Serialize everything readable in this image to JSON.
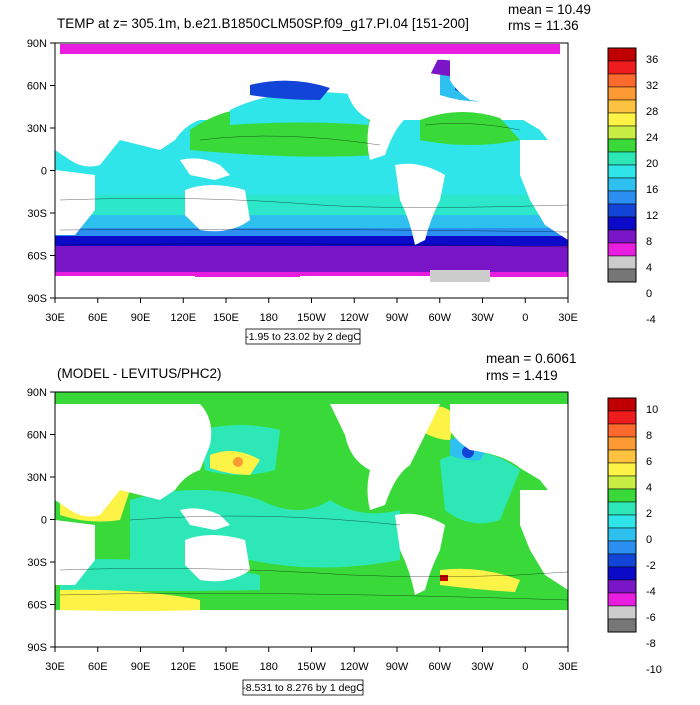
{
  "panels": [
    {
      "title": "TEMP at z= 305.1m, b.e21.B1850CLM50SP.f09_g17.PI.04 [151-200]",
      "mean": "mean = 10.49",
      "rms": "rms = 11.36",
      "range_label": "-1.95 to 23.02 by 2 degC",
      "lat_labels": [
        "90N",
        "60N",
        "30N",
        "0",
        "30S",
        "60S",
        "90S"
      ],
      "lon_labels": [
        "30E",
        "60E",
        "90E",
        "120E",
        "150E",
        "180",
        "150W",
        "120W",
        "90W",
        "60W",
        "30W",
        "0",
        "30E"
      ],
      "colorbar": {
        "labels": [
          "36",
          "32",
          "28",
          "24",
          "20",
          "16",
          "12",
          "8",
          "4",
          "0",
          "-4"
        ],
        "colors": [
          "#c00000",
          "#ee1c1c",
          "#fb6a2c",
          "#fd9a33",
          "#fcc240",
          "#fdf346",
          "#c8ee44",
          "#3ad93a",
          "#2de8b6",
          "#2fe5e9",
          "#2ec0ee",
          "#2a8ff0",
          "#1244d8",
          "#0a0ac8",
          "#7a16c8",
          "#e81de0",
          "#cccccc",
          "#777777"
        ]
      }
    },
    {
      "title": "(MODEL - LEVITUS/PHC2)",
      "mean": "mean = 0.6061",
      "rms": "rms = 1.419",
      "range_label": "-8.531 to 8.276 by 1 degC",
      "lat_labels": [
        "90N",
        "60N",
        "30N",
        "0",
        "30S",
        "60S",
        "90S"
      ],
      "lon_labels": [
        "30E",
        "60E",
        "90E",
        "120E",
        "150E",
        "180",
        "150W",
        "120W",
        "90W",
        "60W",
        "30W",
        "0",
        "30E"
      ],
      "colorbar": {
        "labels": [
          "10",
          "8",
          "6",
          "4",
          "2",
          "0",
          "-2",
          "-4",
          "-6",
          "-8",
          "-10"
        ],
        "colors": [
          "#c00000",
          "#ee1c1c",
          "#fb6a2c",
          "#fd9a33",
          "#fcc240",
          "#fdf346",
          "#c8ee44",
          "#3ad93a",
          "#2de8b6",
          "#2fe5e9",
          "#2ec0ee",
          "#2a8ff0",
          "#1244d8",
          "#0a0ac8",
          "#7a16c8",
          "#e81de0",
          "#cccccc",
          "#777777"
        ]
      }
    }
  ]
}
